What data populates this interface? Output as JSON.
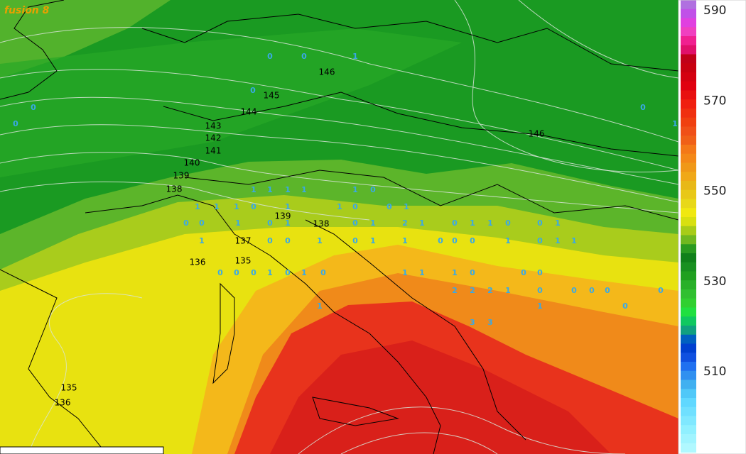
{
  "map": {
    "label": "fusion 8",
    "colorbar_labels": [
      590,
      570,
      550,
      530,
      510
    ],
    "contour_labels": [
      "146",
      "145",
      "144",
      "143",
      "142",
      "141",
      "140",
      "139",
      "138",
      "139",
      "138",
      "137",
      "136",
      "135",
      "146",
      "135",
      "136"
    ],
    "station_values": [
      "0",
      "0",
      "1",
      "0",
      "0",
      "0",
      "1",
      "0",
      "1",
      "1",
      "1",
      "1",
      "1",
      "0",
      "1",
      "1",
      "1",
      "0",
      "1",
      "1",
      "0",
      "0",
      "1",
      "0",
      "0",
      "1",
      "0",
      "1",
      "0",
      "1",
      "2",
      "1",
      "0",
      "1",
      "1",
      "0",
      "0",
      "1",
      "1",
      "0",
      "0",
      "1",
      "0",
      "1",
      "1",
      "0",
      "0",
      "0",
      "1",
      "0",
      "1",
      "1",
      "0",
      "0",
      "0",
      "1",
      "0",
      "1",
      "0",
      "1",
      "1",
      "1",
      "0",
      "0",
      "0",
      "2",
      "2",
      "2",
      "1",
      "0",
      "3",
      "3",
      "0",
      "0",
      "0",
      "0",
      "1",
      "1",
      "0"
    ]
  }
}
